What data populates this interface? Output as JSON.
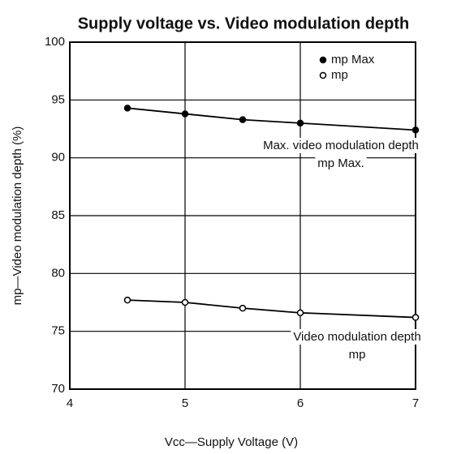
{
  "chart_data": {
    "type": "line",
    "title": "Supply voltage vs. Video modulation depth",
    "x_label": "Vcc—Supply Voltage (V)",
    "y_label": "mp—Video modulation depth  (%)",
    "x": [
      4.5,
      5,
      5.5,
      6,
      7
    ],
    "series": [
      {
        "name": "mp Max",
        "color": "#000000",
        "marker": "filled",
        "values": [
          94.3,
          93.8,
          93.3,
          93.0,
          92.4
        ]
      },
      {
        "name": "mp",
        "color": "#000000",
        "marker": "open",
        "values": [
          77.7,
          77.5,
          77.0,
          76.6,
          76.2
        ]
      }
    ],
    "xlim": [
      4,
      7
    ],
    "xticks": [
      4,
      5,
      6,
      7
    ],
    "ylim": [
      70,
      100
    ],
    "yticks": [
      70,
      75,
      80,
      85,
      90,
      95,
      100
    ],
    "grid": true,
    "legend": "upper right",
    "annotations": [
      "Max. video modulation depth",
      "mp Max.",
      "Video modulation depth",
      "mp"
    ]
  }
}
